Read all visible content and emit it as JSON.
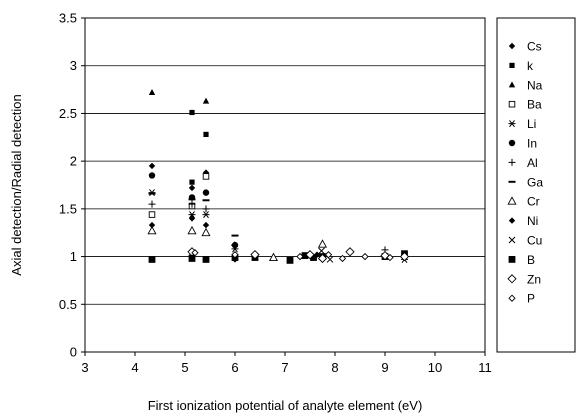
{
  "chart_data": {
    "type": "scatter",
    "title": "",
    "xlabel": "First ionization potential of analyte element (eV)",
    "ylabel": "Axial detection/Radial detection",
    "xlim": [
      3,
      11
    ],
    "ylim": [
      0,
      3.5
    ],
    "xticks": [
      "3",
      "4",
      "5",
      "6",
      "7",
      "8",
      "9",
      "10",
      "11"
    ],
    "yticks": [
      "0",
      "0.5",
      "1",
      "1.5",
      "2",
      "2.5",
      "3",
      "3.5"
    ],
    "grid": "horizontal",
    "legend_position": "right",
    "series": [
      {
        "name": "Cs",
        "marker": "diamond-filled",
        "points": [
          [
            4.34,
            1.95
          ],
          [
            5.14,
            1.72
          ],
          [
            5.42,
            1.88
          ]
        ]
      },
      {
        "name": "k",
        "marker": "square-filled",
        "points": [
          [
            5.14,
            2.51
          ],
          [
            5.42,
            2.28
          ],
          [
            5.14,
            1.78
          ]
        ]
      },
      {
        "name": "Na",
        "marker": "triangle-filled",
        "points": [
          [
            4.34,
            2.72
          ],
          [
            5.42,
            2.63
          ]
        ]
      },
      {
        "name": "Ba",
        "marker": "square-open",
        "points": [
          [
            4.34,
            1.44
          ],
          [
            5.14,
            1.53
          ],
          [
            5.42,
            1.84
          ]
        ]
      },
      {
        "name": "Li",
        "marker": "asterisk",
        "points": [
          [
            4.34,
            1.67
          ],
          [
            5.14,
            1.44
          ],
          [
            5.42,
            1.44
          ],
          [
            6.0,
            1.08
          ],
          [
            9.39,
            0.97
          ]
        ]
      },
      {
        "name": "In",
        "marker": "circle-filled",
        "points": [
          [
            4.34,
            1.85
          ],
          [
            5.14,
            1.62
          ],
          [
            5.42,
            1.67
          ],
          [
            6.0,
            1.12
          ]
        ]
      },
      {
        "name": "Al",
        "marker": "plus",
        "points": [
          [
            4.34,
            1.55
          ],
          [
            5.14,
            1.55
          ],
          [
            5.42,
            1.5
          ],
          [
            5.99,
            1.12
          ],
          [
            9.0,
            1.07
          ]
        ]
      },
      {
        "name": "Ga",
        "marker": "dash",
        "points": [
          [
            4.34,
            1.66
          ],
          [
            5.14,
            1.6
          ],
          [
            5.42,
            1.59
          ],
          [
            6.0,
            1.22
          ]
        ]
      },
      {
        "name": "Cr",
        "marker": "triangle-open",
        "points": [
          [
            4.34,
            1.27
          ],
          [
            5.14,
            1.27
          ],
          [
            5.42,
            1.25
          ],
          [
            6.77,
            0.99
          ],
          [
            7.75,
            1.13
          ]
        ]
      },
      {
        "name": "Ni",
        "marker": "diamond-filled",
        "points": [
          [
            4.34,
            1.33
          ],
          [
            5.14,
            1.4
          ],
          [
            5.42,
            1.33
          ],
          [
            6.0,
            0.97
          ],
          [
            7.64,
            1.02
          ]
        ]
      },
      {
        "name": "Cu",
        "marker": "x",
        "points": [
          [
            5.14,
            0.99
          ],
          [
            6.4,
            1.0
          ],
          [
            7.73,
            1.06
          ],
          [
            7.9,
            0.97
          ]
        ]
      },
      {
        "name": "B",
        "marker": "square-filled-large",
        "points": [
          [
            4.34,
            0.97
          ],
          [
            5.14,
            0.98
          ],
          [
            5.42,
            0.97
          ],
          [
            6.0,
            0.99
          ],
          [
            6.4,
            0.99
          ],
          [
            7.1,
            0.96
          ],
          [
            7.4,
            1.01
          ],
          [
            7.57,
            0.99
          ],
          [
            7.75,
            1.0
          ],
          [
            9.0,
            1.0
          ],
          [
            9.39,
            1.03
          ]
        ]
      },
      {
        "name": "Zn",
        "marker": "diamond-open",
        "points": [
          [
            5.14,
            1.05
          ],
          [
            6.4,
            1.02
          ],
          [
            7.5,
            1.02
          ],
          [
            7.75,
            0.98
          ],
          [
            8.3,
            1.05
          ],
          [
            9.0,
            1.01
          ],
          [
            9.39,
            1.0
          ]
        ]
      },
      {
        "name": "P",
        "marker": "diamond-open-small",
        "points": [
          [
            5.2,
            1.04
          ],
          [
            6.0,
            1.02
          ],
          [
            7.3,
            1.0
          ],
          [
            7.87,
            1.02
          ],
          [
            8.15,
            0.98
          ],
          [
            8.6,
            1.0
          ],
          [
            9.1,
            0.99
          ]
        ]
      }
    ]
  }
}
